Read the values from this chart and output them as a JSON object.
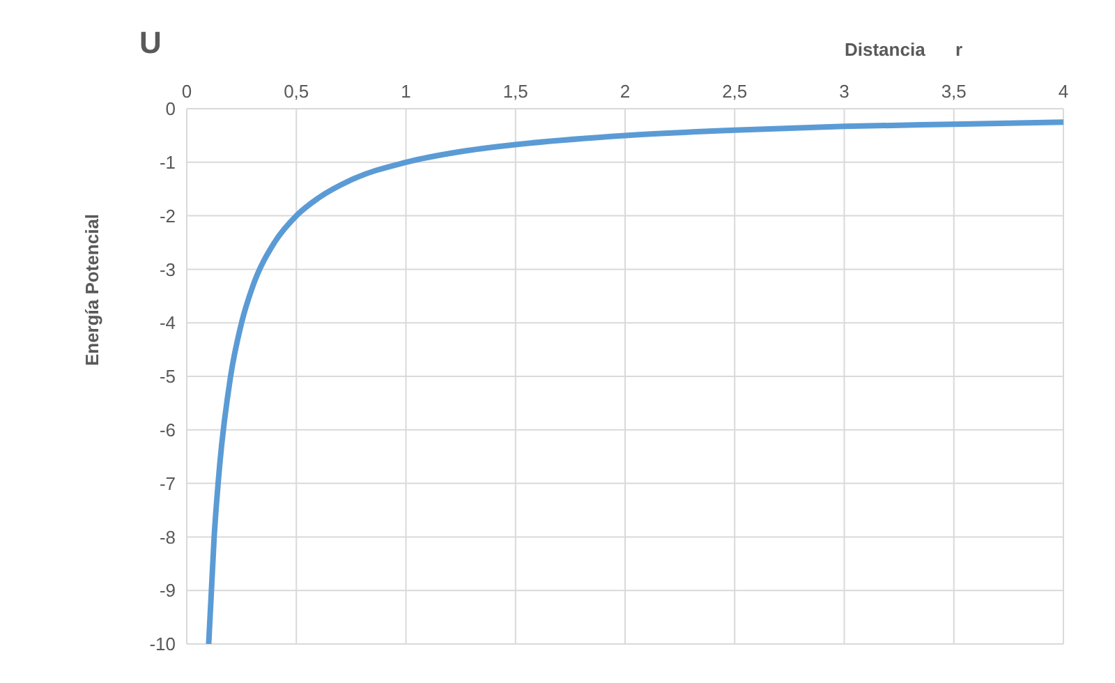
{
  "chart_data": {
    "type": "line",
    "title": "U",
    "xlabel": "Distancia      r",
    "ylabel": "Energía Potencial",
    "x": [
      0.1,
      0.125,
      0.15,
      0.2,
      0.25,
      0.3,
      0.4,
      0.5,
      0.6,
      0.75,
      1,
      1.25,
      1.5,
      2,
      2.5,
      3,
      3.5,
      4
    ],
    "series": [
      {
        "color": "#5b9bd5",
        "values": [
          -10,
          -8,
          -6.67,
          -5,
          -4,
          -3.33,
          -2.5,
          -2,
          -1.67,
          -1.33,
          -1,
          -0.8,
          -0.67,
          -0.5,
          -0.4,
          -0.33,
          -0.29,
          -0.25
        ]
      }
    ],
    "xlim": [
      0,
      4
    ],
    "xticks": [
      0,
      {
        "value": 0.5,
        "label": "0,5"
      },
      1,
      {
        "value": 1.5,
        "label": "1,5"
      },
      2,
      {
        "value": 2.5,
        "label": "2,5"
      },
      3,
      {
        "value": 3.5,
        "label": "3,5"
      },
      4
    ],
    "ylim": [
      -10,
      0
    ],
    "yticks": [
      -10,
      -9,
      -8,
      -7,
      -6,
      -5,
      -4,
      -3,
      -2,
      -1,
      0
    ],
    "grid": true
  }
}
